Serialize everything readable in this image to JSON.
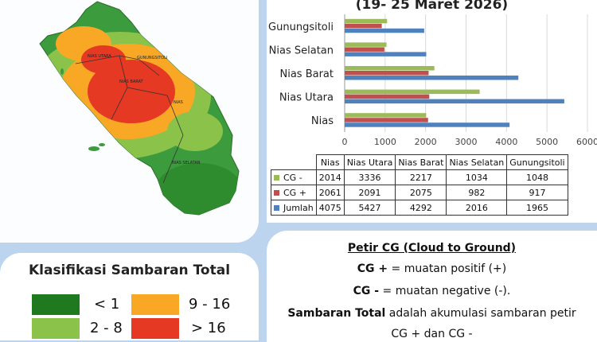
{
  "colors": {
    "cg_minus": "#9bbb59",
    "cg_plus": "#c0504d",
    "jumlah": "#4f81bd",
    "class_lt1": "#1f7a1f",
    "class_2_8": "#8bc34a",
    "class_9_16": "#f9a825",
    "class_gt16": "#e53923"
  },
  "map": {
    "region_labels": [
      "NIAS UTARA",
      "GUNUNGSITOLI",
      "NIAS BARAT",
      "NIAS",
      "NIAS SELATAN"
    ]
  },
  "legend": {
    "title": "Klasifikasi Sambaran Total",
    "items": [
      {
        "label": "< 1",
        "color": "#1f7a1f"
      },
      {
        "label": "9 - 16",
        "color": "#f9a825"
      },
      {
        "label": "2 - 8",
        "color": "#8bc34a"
      },
      {
        "label": "> 16",
        "color": "#e53923"
      }
    ]
  },
  "chart_data": {
    "type": "bar",
    "orientation": "horizontal",
    "title": "(19- 25 Maret 2026)",
    "categories": [
      "Nias",
      "Nias Utara",
      "Nias Barat",
      "Nias Selatan",
      "Gunungsitoli"
    ],
    "series": [
      {
        "name": "CG -",
        "values": [
          2014,
          3336,
          2217,
          1034,
          1048
        ],
        "color": "#9bbb59"
      },
      {
        "name": "CG +",
        "values": [
          2061,
          2091,
          2075,
          982,
          917
        ],
        "color": "#c0504d"
      },
      {
        "name": "Jumlah",
        "values": [
          4075,
          5427,
          4292,
          2016,
          1965
        ],
        "color": "#4f81bd"
      }
    ],
    "xlim": [
      0,
      6000
    ],
    "xticks": [
      "0",
      "1000",
      "2000",
      "3000",
      "4000",
      "5000",
      "6000"
    ],
    "grid": true,
    "legend": "table"
  },
  "notes": {
    "heading": "Petir CG (Cloud to Ground)",
    "cg_plus_term": "CG +",
    "cg_plus_def": " = muatan positif (+)",
    "cg_minus_term": "CG -",
    "cg_minus_def": " = muatan negative (-).",
    "total_term": "Sambaran Total",
    "total_def": " adalah akumulasi sambaran petir",
    "cut_line": "CG + dan CG -"
  }
}
